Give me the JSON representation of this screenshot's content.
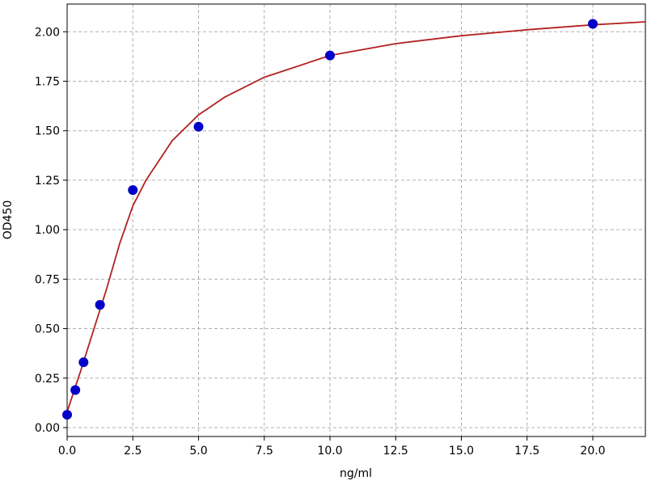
{
  "chart_data": {
    "type": "scatter",
    "x_label": "ng/ml",
    "y_label": "OD450",
    "xlim": [
      0,
      22
    ],
    "ylim": [
      -0.045,
      2.14
    ],
    "xticks": [
      {
        "value": 0,
        "label": "0.0"
      },
      {
        "value": 2.5,
        "label": "2.5"
      },
      {
        "value": 5,
        "label": "5.0"
      },
      {
        "value": 7.5,
        "label": "7.5"
      },
      {
        "value": 10,
        "label": "10.0"
      },
      {
        "value": 12.5,
        "label": "12.5"
      },
      {
        "value": 15,
        "label": "15.0"
      },
      {
        "value": 17.5,
        "label": "17.5"
      },
      {
        "value": 20,
        "label": "20.0"
      }
    ],
    "yticks": [
      {
        "value": 0,
        "label": "0.00"
      },
      {
        "value": 0.25,
        "label": "0.25"
      },
      {
        "value": 0.5,
        "label": "0.50"
      },
      {
        "value": 0.75,
        "label": "0.75"
      },
      {
        "value": 1,
        "label": "1.00"
      },
      {
        "value": 1.25,
        "label": "1.25"
      },
      {
        "value": 1.5,
        "label": "1.50"
      },
      {
        "value": 1.75,
        "label": "1.75"
      },
      {
        "value": 2,
        "label": "2.00"
      }
    ],
    "grid": true,
    "series": [
      {
        "type": "line",
        "color": "#b22222",
        "x": [
          0,
          0.5,
          1,
          1.5,
          2,
          2.5,
          3,
          4,
          5,
          6,
          7.5,
          10,
          12.5,
          15,
          17.5,
          20,
          22
        ],
        "values": [
          0.08,
          0.28,
          0.49,
          0.7,
          0.93,
          1.12,
          1.25,
          1.45,
          1.58,
          1.67,
          1.77,
          1.88,
          1.94,
          1.98,
          2.01,
          2.035,
          2.05
        ]
      },
      {
        "type": "scatter",
        "color": "#0000c8",
        "x": [
          0,
          0.3125,
          0.625,
          1.25,
          2.5,
          5,
          10,
          20
        ],
        "values": [
          0.065,
          0.19,
          0.33,
          0.62,
          1.2,
          1.52,
          1.88,
          2.04
        ]
      }
    ]
  }
}
